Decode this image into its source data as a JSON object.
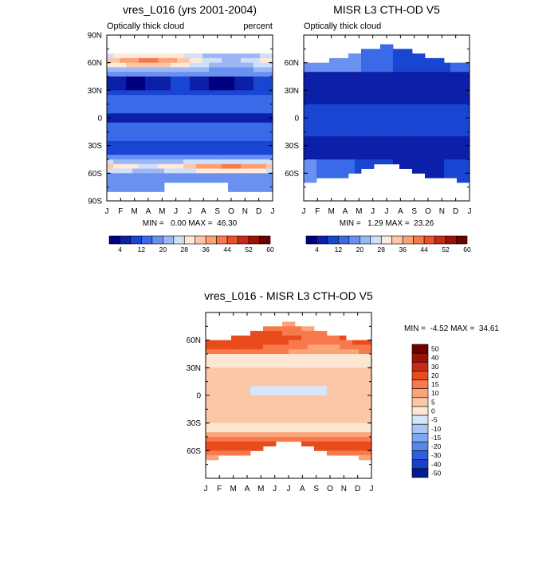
{
  "chart_data": [
    {
      "type": "heatmap",
      "panel": "model",
      "title": "vres_L016 (yrs 2001-2004)",
      "left_label": "Optically thick cloud",
      "right_label": "percent",
      "minmax_text": "MIN =   0.00 MAX =  46.30",
      "min": 0.0,
      "max": 46.3,
      "x_ticks": [
        "J",
        "F",
        "M",
        "A",
        "M",
        "J",
        "J",
        "A",
        "S",
        "O",
        "N",
        "D",
        "J"
      ],
      "y_ticks": [
        "90N",
        "60N",
        "30N",
        "0",
        "30S",
        "60S",
        "90S"
      ],
      "y_tick_values": [
        90,
        60,
        30,
        0,
        -30,
        -60,
        -90
      ],
      "ylim": [
        -90,
        90
      ],
      "colorbar_labels": [
        "4",
        "12",
        "20",
        "28",
        "36",
        "44",
        "52",
        "60"
      ]
    },
    {
      "type": "heatmap",
      "panel": "obs",
      "title": "MISR L3 CTH-OD V5",
      "left_label": "Optically thick cloud",
      "minmax_text": "MIN =   1.29 MAX =  23.26",
      "min": 1.29,
      "max": 23.26,
      "x_ticks": [
        "J",
        "F",
        "M",
        "A",
        "M",
        "J",
        "J",
        "A",
        "S",
        "O",
        "N",
        "D",
        "J"
      ],
      "y_ticks": [
        "60N",
        "30N",
        "0",
        "30S",
        "60S"
      ],
      "y_tick_values": [
        60,
        30,
        0,
        -30,
        -60
      ],
      "ylim": [
        -90,
        90
      ],
      "colorbar_labels": [
        "4",
        "12",
        "20",
        "28",
        "36",
        "44",
        "52",
        "60"
      ]
    },
    {
      "type": "heatmap",
      "panel": "difference",
      "title": "vres_L016 - MISR L3 CTH-OD V5",
      "minmax_text": "MIN =  -4.52 MAX =  34.61",
      "min": -4.52,
      "max": 34.61,
      "x_ticks": [
        "J",
        "F",
        "M",
        "A",
        "M",
        "J",
        "J",
        "A",
        "S",
        "O",
        "N",
        "D",
        "J"
      ],
      "y_ticks": [
        "60N",
        "30N",
        "0",
        "30S",
        "60S"
      ],
      "y_tick_values": [
        60,
        30,
        0,
        -30,
        -60
      ],
      "ylim": [
        -90,
        90
      ],
      "colorbar_labels": [
        "50",
        "40",
        "30",
        "20",
        "15",
        "10",
        "5",
        "0",
        "-5",
        "-10",
        "-15",
        "-20",
        "-30",
        "-40",
        "-50"
      ]
    }
  ],
  "colors": {
    "abs_scale": [
      "#00007f",
      "#0c1fa8",
      "#1846d2",
      "#3a6ae8",
      "#6a90f0",
      "#9cb7f6",
      "#cfe0fb",
      "#ffe9d8",
      "#fdc7a7",
      "#f9a177",
      "#f47a4c",
      "#e8502a",
      "#c52b16",
      "#9a1108",
      "#6e0000"
    ],
    "diff_scale": [
      "#6e0000",
      "#9a1108",
      "#c52b16",
      "#e84b1c",
      "#f87a4c",
      "#fba47a",
      "#fcc7a6",
      "#fde6d2",
      "#d5e6fb",
      "#a9c7f6",
      "#7ea7ef",
      "#5788e8",
      "#2f5fe0",
      "#1a3ec8",
      "#001a8f"
    ]
  }
}
